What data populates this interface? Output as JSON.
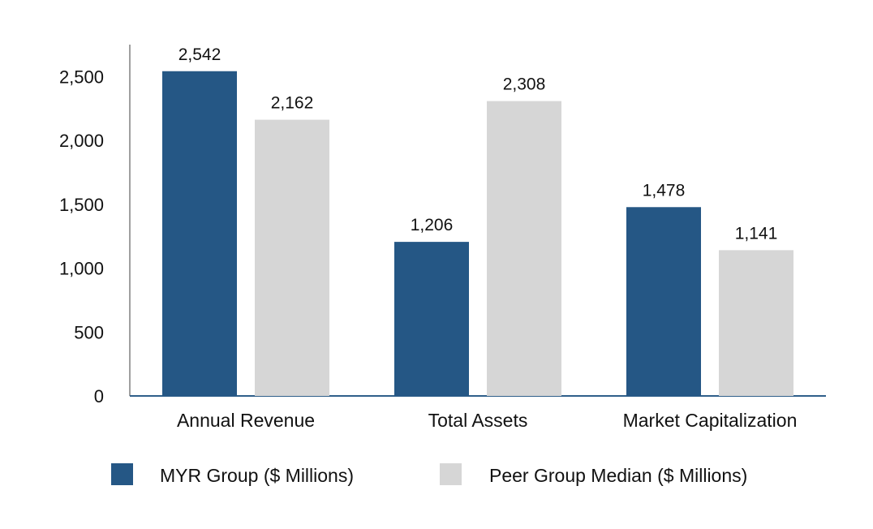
{
  "chart_data": {
    "type": "bar",
    "title": "",
    "xlabel": "",
    "ylabel": "",
    "categories": [
      "Annual Revenue",
      "Total Assets",
      "Market Capitalization"
    ],
    "series": [
      {
        "name": "MYR Group ($ Millions)",
        "color": "#255785",
        "values": [
          2542,
          1206,
          1478
        ],
        "labels": [
          "2,542",
          "1,206",
          "1,478"
        ]
      },
      {
        "name": "Peer Group Median ($ Millions)",
        "color": "#d6d6d6",
        "values": [
          2162,
          2308,
          1141
        ],
        "labels": [
          "2,162",
          "2,308",
          "1,141"
        ]
      }
    ],
    "ylim": [
      0,
      2750
    ],
    "yticks": [
      0,
      500,
      1000,
      1500,
      2000,
      2500
    ],
    "ytick_labels": [
      "0",
      "500",
      "1,000",
      "1,500",
      "2,000",
      "2,500"
    ],
    "grid": false,
    "legend_position": "bottom",
    "axis_color": "#2f5f8a",
    "left_axis_color": "#a0a0a0"
  }
}
